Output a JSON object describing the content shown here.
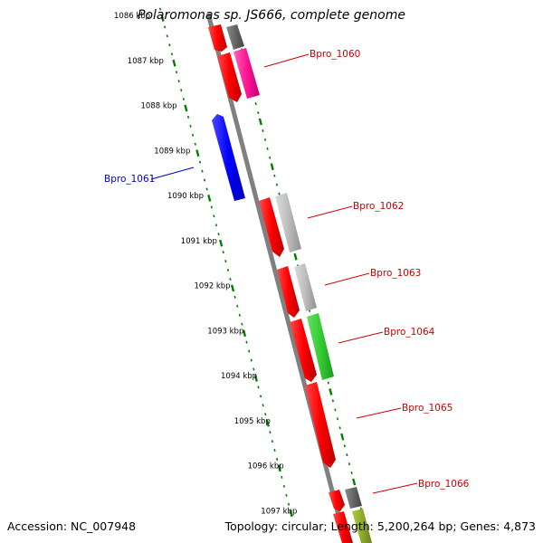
{
  "title": "Polaromonas sp. JS666, complete genome",
  "footer": {
    "accession": "Accession: NC_007948",
    "summary": "Topology: circular; Length: 5,200,264 bp; Genes: 4,873"
  },
  "kbp_labels": [
    "1086 kbp",
    "1087 kbp",
    "1088 kbp",
    "1089 kbp",
    "1090 kbp",
    "1091 kbp",
    "1092 kbp",
    "1093 kbp",
    "1094 kbp",
    "1095 kbp",
    "1096 kbp",
    "1097 kbp"
  ],
  "gene_labels": [
    {
      "text": "Bpro_1060",
      "color": "#cc0000"
    },
    {
      "text": "Bpro_1061",
      "color": "#0000cc"
    },
    {
      "text": "Bpro_1062",
      "color": "#cc0000"
    },
    {
      "text": "Bpro_1063",
      "color": "#cc0000"
    },
    {
      "text": "Bpro_1064",
      "color": "#cc0000"
    },
    {
      "text": "Bpro_1065",
      "color": "#cc0000"
    },
    {
      "text": "Bpro_1066",
      "color": "#cc0000"
    }
  ],
  "colors": {
    "backbone": "#808080",
    "ticks": "#008000",
    "cds": "#ff0000",
    "reverse_gene": "#0000ff",
    "feature_gray": "#b4b4b4",
    "feature_dark": "#646464",
    "feature_pink": "#ff1493",
    "feature_green": "#33cc33",
    "feature_olive": "#8faa2a"
  }
}
